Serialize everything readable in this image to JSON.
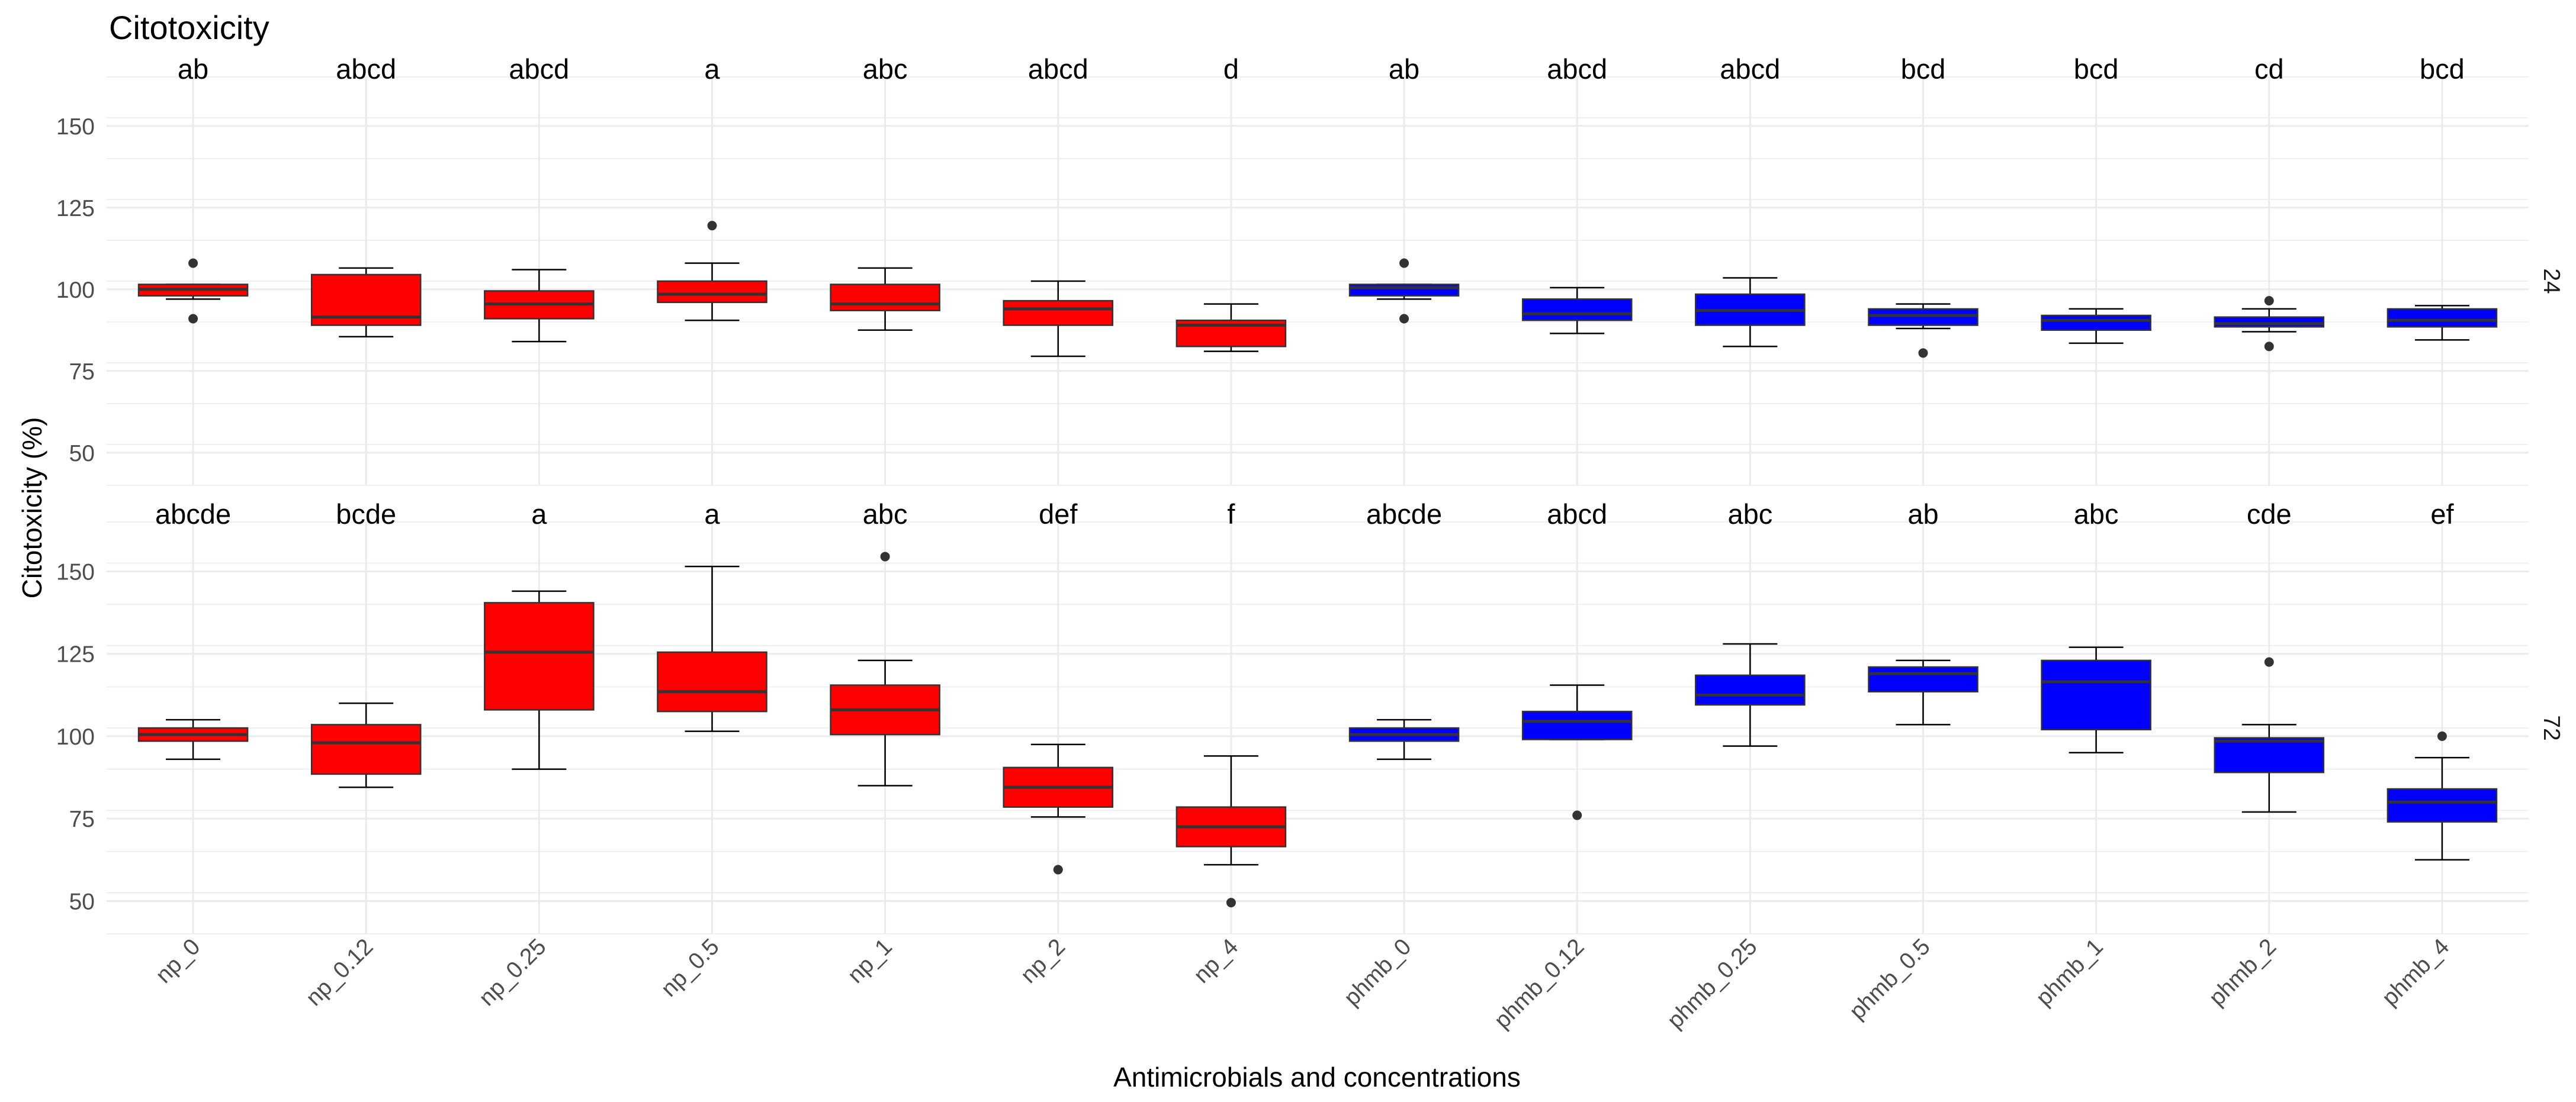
{
  "chart_data": {
    "type": "boxplot",
    "title": "Citotoxicity",
    "xlabel": "Antimicrobials and concentrations",
    "ylabel": "Citotoxicity (%)",
    "ylim": [
      40,
      165
    ],
    "yticks": [
      50,
      75,
      100,
      125,
      150
    ],
    "categories": [
      "np_0",
      "np_0.12",
      "np_0.25",
      "np_0.5",
      "np_1",
      "np_2",
      "np_4",
      "phmb_0",
      "phmb_0.12",
      "phmb_0.25",
      "phmb_0.5",
      "phmb_1",
      "phmb_2",
      "phmb_4"
    ],
    "colors": {
      "np": "#ff0000",
      "phmb": "#0000ff",
      "outline": "#333333",
      "grid": "#ebebeb"
    },
    "panels": [
      {
        "strip_label": "24",
        "letters": [
          "ab",
          "abcd",
          "abcd",
          "a",
          "abc",
          "abcd",
          "d",
          "ab",
          "abcd",
          "abcd",
          "bcd",
          "bcd",
          "cd",
          "bcd"
        ],
        "boxes": [
          {
            "low": 97,
            "q1": 98,
            "median": 100,
            "q3": 101.5,
            "high": 101.5,
            "outliers": [
              108,
              91
            ]
          },
          {
            "low": 85.5,
            "q1": 89,
            "median": 91.5,
            "q3": 104.5,
            "high": 106.5,
            "outliers": []
          },
          {
            "low": 84,
            "q1": 91,
            "median": 95.5,
            "q3": 99.5,
            "high": 106,
            "outliers": []
          },
          {
            "low": 90.5,
            "q1": 96,
            "median": 98.5,
            "q3": 102.5,
            "high": 108,
            "outliers": [
              119.5
            ]
          },
          {
            "low": 87.5,
            "q1": 93.5,
            "median": 95.5,
            "q3": 101.5,
            "high": 106.5,
            "outliers": []
          },
          {
            "low": 79.5,
            "q1": 89,
            "median": 94,
            "q3": 96.5,
            "high": 102.5,
            "outliers": []
          },
          {
            "low": 81,
            "q1": 82.5,
            "median": 89,
            "q3": 90.5,
            "high": 95.5,
            "outliers": []
          },
          {
            "low": 97,
            "q1": 98,
            "median": 100.5,
            "q3": 101.5,
            "high": 101.5,
            "outliers": [
              108,
              91
            ]
          },
          {
            "low": 86.5,
            "q1": 90.5,
            "median": 92.5,
            "q3": 97,
            "high": 100.5,
            "outliers": []
          },
          {
            "low": 82.5,
            "q1": 89,
            "median": 93.5,
            "q3": 98.5,
            "high": 103.5,
            "outliers": []
          },
          {
            "low": 88,
            "q1": 89,
            "median": 92,
            "q3": 94,
            "high": 95.5,
            "outliers": [
              80.5
            ]
          },
          {
            "low": 83.5,
            "q1": 87.5,
            "median": 90.5,
            "q3": 92,
            "high": 94,
            "outliers": []
          },
          {
            "low": 87,
            "q1": 88.5,
            "median": 89.5,
            "q3": 91.5,
            "high": 94,
            "outliers": [
              96.5,
              82.5
            ]
          },
          {
            "low": 84.5,
            "q1": 88.5,
            "median": 90.5,
            "q3": 94,
            "high": 95,
            "outliers": []
          }
        ]
      },
      {
        "strip_label": "72",
        "letters": [
          "abcde",
          "bcde",
          "a",
          "a",
          "abc",
          "def",
          "f",
          "abcde",
          "abcd",
          "abc",
          "ab",
          "abc",
          "cde",
          "ef"
        ],
        "boxes": [
          {
            "low": 93,
            "q1": 98.5,
            "median": 100.5,
            "q3": 102.5,
            "high": 105,
            "outliers": []
          },
          {
            "low": 84.5,
            "q1": 88.5,
            "median": 98,
            "q3": 103.5,
            "high": 110,
            "outliers": []
          },
          {
            "low": 90,
            "q1": 108,
            "median": 125.5,
            "q3": 140.5,
            "high": 144,
            "outliers": []
          },
          {
            "low": 101.5,
            "q1": 107.5,
            "median": 113.5,
            "q3": 125.5,
            "high": 151.5,
            "outliers": []
          },
          {
            "low": 85,
            "q1": 100.5,
            "median": 108,
            "q3": 115.5,
            "high": 123,
            "outliers": [
              154.5
            ]
          },
          {
            "low": 75.5,
            "q1": 78.5,
            "median": 84.5,
            "q3": 90.5,
            "high": 97.5,
            "outliers": [
              59.5
            ]
          },
          {
            "low": 61,
            "q1": 66.5,
            "median": 72.5,
            "q3": 78.5,
            "high": 94,
            "outliers": [
              49.5
            ]
          },
          {
            "low": 93,
            "q1": 98.5,
            "median": 100.5,
            "q3": 102.5,
            "high": 105,
            "outliers": []
          },
          {
            "low": 99,
            "q1": 99,
            "median": 104.5,
            "q3": 107.5,
            "high": 115.5,
            "outliers": [
              76
            ]
          },
          {
            "low": 97,
            "q1": 109.5,
            "median": 112.5,
            "q3": 118.5,
            "high": 128,
            "outliers": []
          },
          {
            "low": 103.5,
            "q1": 113.5,
            "median": 119,
            "q3": 121,
            "high": 123,
            "outliers": []
          },
          {
            "low": 95,
            "q1": 102,
            "median": 116.5,
            "q3": 123,
            "high": 127,
            "outliers": []
          },
          {
            "low": 77,
            "q1": 89,
            "median": 98.5,
            "q3": 99.5,
            "high": 103.5,
            "outliers": [
              122.5
            ]
          },
          {
            "low": 62.5,
            "q1": 74,
            "median": 80,
            "q3": 84,
            "high": 93.5,
            "outliers": [
              100
            ]
          }
        ]
      }
    ]
  }
}
